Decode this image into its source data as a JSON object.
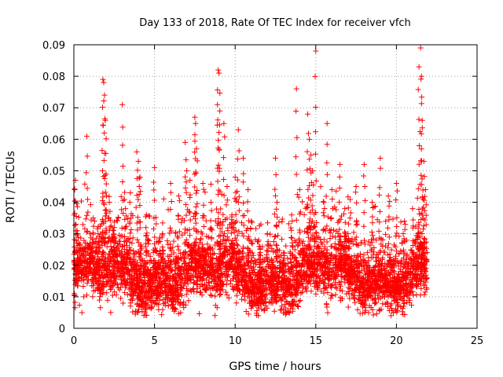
{
  "chart_data": {
    "type": "scatter",
    "title": "Day 133 of 2018, Rate Of TEC Index for receiver vfch",
    "xlabel": "GPS time / hours",
    "ylabel": "ROTI / TECUs",
    "xlim": [
      0,
      25
    ],
    "ylim": [
      0,
      0.09
    ],
    "x_ticks": [
      0,
      5,
      10,
      15,
      20,
      25
    ],
    "y_ticks": [
      0,
      0.01,
      0.02,
      0.03,
      0.04,
      0.05,
      0.06,
      0.07,
      0.08,
      0.09
    ],
    "x_tick_labels": [
      "0",
      "5",
      "10",
      "15",
      "20",
      "25"
    ],
    "y_tick_labels": [
      "0",
      "0.01",
      "0.02",
      "0.03",
      "0.04",
      "0.05",
      "0.06",
      "0.07",
      "0.08",
      "0.09"
    ],
    "grid": true,
    "marker": "+",
    "marker_color": "#ff0000",
    "series": [
      {
        "name": "ROTI",
        "color": "#ff0000",
        "description": "Dense cloud of ROTI samples between ~0.005 and ~0.03 TECU/min across 0–21.9 h, with sporadic spikes",
        "x": [
          0.05,
          0.1,
          0.2,
          0.35,
          0.5,
          0.8,
          1.0,
          1.2,
          1.5,
          1.8,
          1.85,
          1.9,
          1.95,
          2.0,
          2.2,
          2.5,
          3.0,
          3.2,
          3.5,
          3.9,
          4.0,
          4.1,
          4.5,
          5.0,
          5.5,
          6.0,
          6.5,
          6.9,
          7.0,
          7.2,
          7.5,
          7.55,
          7.6,
          8.0,
          8.5,
          8.9,
          8.95,
          9.0,
          9.05,
          9.3,
          9.5,
          9.8,
          10.0,
          10.2,
          10.5,
          10.8,
          11.0,
          11.5,
          12.0,
          12.5,
          12.6,
          13.0,
          13.5,
          13.8,
          14.0,
          14.5,
          14.6,
          14.7,
          14.8,
          15.0,
          15.5,
          15.7,
          16.0,
          16.5,
          16.8,
          17.0,
          17.5,
          18.0,
          18.5,
          19.0,
          19.5,
          20.0,
          20.5,
          21.0,
          21.4,
          21.5,
          21.55,
          21.6,
          21.7,
          21.8
        ],
        "y": [
          0.044,
          0.047,
          0.031,
          0.022,
          0.005,
          0.061,
          0.027,
          0.035,
          0.03,
          0.079,
          0.078,
          0.074,
          0.066,
          0.049,
          0.04,
          0.032,
          0.071,
          0.038,
          0.043,
          0.056,
          0.053,
          0.048,
          0.036,
          0.051,
          0.03,
          0.046,
          0.042,
          0.059,
          0.05,
          0.047,
          0.067,
          0.065,
          0.057,
          0.046,
          0.04,
          0.071,
          0.082,
          0.081,
          0.069,
          0.065,
          0.045,
          0.036,
          0.048,
          0.063,
          0.054,
          0.044,
          0.034,
          0.026,
          0.03,
          0.054,
          0.04,
          0.024,
          0.036,
          0.076,
          0.044,
          0.068,
          0.06,
          0.055,
          0.05,
          0.088,
          0.04,
          0.065,
          0.044,
          0.052,
          0.038,
          0.03,
          0.045,
          0.052,
          0.04,
          0.054,
          0.042,
          0.046,
          0.034,
          0.038,
          0.083,
          0.089,
          0.08,
          0.066,
          0.053,
          0.044
        ]
      }
    ]
  }
}
